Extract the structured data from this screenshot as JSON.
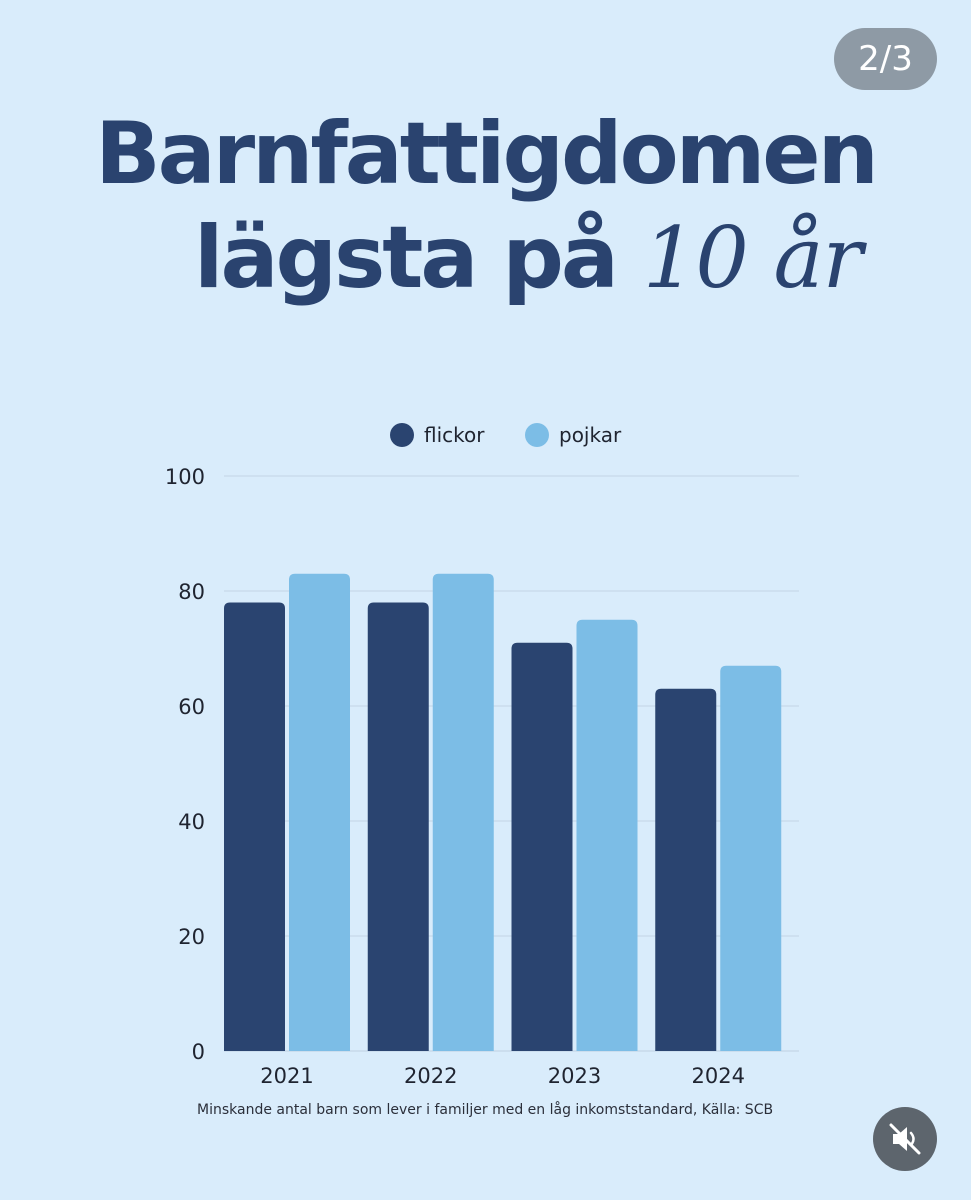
{
  "page_counter": "2/3",
  "headline": {
    "line1": "Barnfattigdomen",
    "line2_prefix": "lägsta på",
    "line2_emphasis": "10 år"
  },
  "caption": "Minskande antal barn som lever i familjer med en låg inkomststandard, Källa: SCB",
  "mute_icon": "speaker-muted-icon",
  "chart_data": {
    "type": "bar",
    "categories": [
      "2021",
      "2022",
      "2023",
      "2024"
    ],
    "series": [
      {
        "name": "flickor",
        "color": "#2a4470",
        "values": [
          78,
          78,
          71,
          63
        ]
      },
      {
        "name": "pojkar",
        "color": "#7cbde6",
        "values": [
          83,
          83,
          75,
          67
        ]
      }
    ],
    "yticks": [
      0,
      20,
      40,
      60,
      80,
      100
    ],
    "ylim": [
      0,
      100
    ],
    "grid": true,
    "legend": "top-center"
  }
}
